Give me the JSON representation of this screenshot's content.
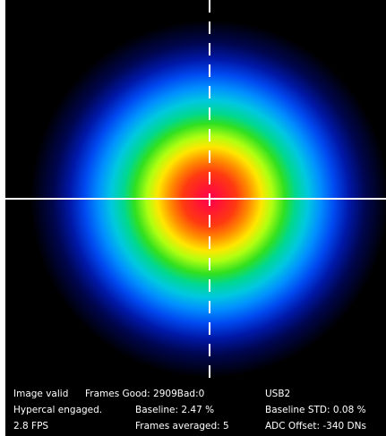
{
  "status": {
    "image_valid": "Image valid",
    "frames_good_bad": "Frames Good: 2909Bad:0",
    "connection": "USB2",
    "hypercal": "Hypercal engaged.",
    "baseline": "Baseline: 2.47 %",
    "baseline_std": "Baseline STD:  0.08 %",
    "fps": "2.8 FPS",
    "frames_averaged": "Frames averaged: 5",
    "adc_offset": "ADC Offset: -340 DNs"
  },
  "colors": {
    "background": "#000000",
    "crosshair": "#ffffff",
    "text": "#ffffff"
  },
  "icons": {
    "crosshair_horizontal": "solid-line",
    "crosshair_vertical": "dashed-line"
  }
}
